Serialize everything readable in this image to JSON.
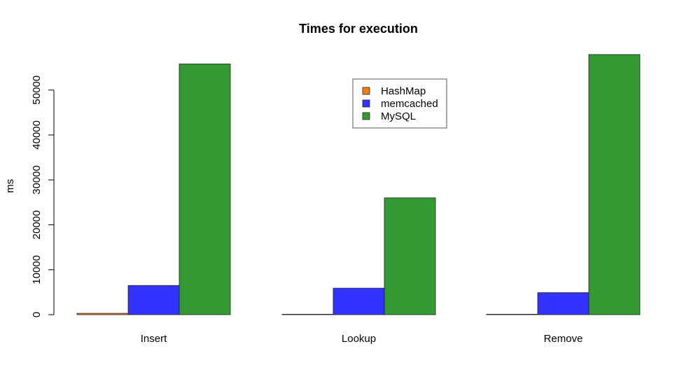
{
  "chart_data": {
    "type": "bar",
    "title": "Times for execution",
    "xlabel": "",
    "ylabel": "ms",
    "categories": [
      "Insert",
      "Lookup",
      "Remove"
    ],
    "series": [
      {
        "name": "HashMap",
        "color": "#f07f13",
        "values": [
          300,
          100,
          100
        ]
      },
      {
        "name": "memcached",
        "color": "#3333ff",
        "values": [
          6500,
          5900,
          4900
        ]
      },
      {
        "name": "MySQL",
        "color": "#339933",
        "values": [
          55800,
          26000,
          57900
        ]
      }
    ],
    "yticks": [
      0,
      10000,
      20000,
      30000,
      40000,
      50000
    ],
    "ylim": [
      0,
      57900
    ],
    "legend": "top-center"
  }
}
